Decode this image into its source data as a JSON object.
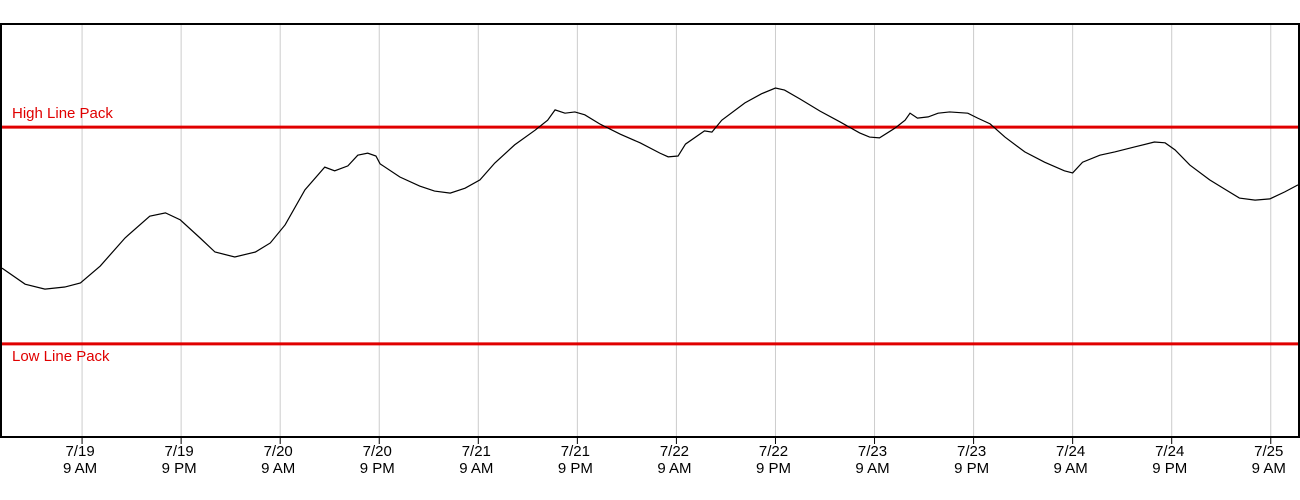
{
  "chart_data": {
    "type": "line",
    "x": [
      -0.7,
      2.1,
      4.5,
      6.9,
      8.8,
      11.2,
      14.2,
      17.2,
      19.1,
      20.9,
      23.3,
      25.1,
      27.5,
      30.0,
      31.8,
      33.6,
      36.0,
      38.4,
      39.6,
      41.2,
      42.4,
      43.6,
      44.6,
      45.1,
      47.5,
      49.9,
      51.7,
      53.6,
      55.4,
      57.2,
      59.0,
      61.4,
      63.9,
      65.4,
      66.3,
      67.5,
      68.7,
      69.9,
      71.7,
      74.2,
      76.6,
      79.0,
      80.0,
      81.2,
      82.1,
      84.4,
      85.3,
      86.5,
      89.3,
      91.3,
      93.0,
      94.1,
      96.0,
      98.4,
      100.8,
      103.2,
      104.4,
      105.6,
      107.5,
      108.7,
      109.3,
      110.2,
      111.5,
      112.7,
      114.1,
      116.3,
      117.5,
      119.0,
      120.8,
      123.2,
      125.6,
      128.0,
      129.0,
      130.2,
      132.3,
      134.1,
      136.5,
      138.9,
      140.2,
      141.4,
      143.2,
      145.6,
      147.4,
      149.2,
      151.1,
      152.9,
      154.7,
      156.3
    ],
    "series": [
      {
        "color": "#000000",
        "values": [
          41.0,
          37.1,
          35.9,
          36.4,
          37.4,
          41.5,
          48.3,
          53.6,
          54.4,
          52.7,
          48.3,
          44.9,
          43.7,
          44.9,
          47.1,
          51.5,
          60.0,
          65.5,
          64.6,
          65.8,
          68.4,
          68.9,
          68.2,
          66.3,
          63.1,
          60.9,
          59.7,
          59.2,
          60.4,
          62.4,
          66.5,
          70.9,
          74.5,
          76.9,
          79.4,
          78.6,
          78.9,
          78.2,
          76.0,
          73.5,
          71.4,
          68.9,
          68.0,
          68.2,
          71.1,
          74.3,
          74.0,
          76.9,
          81.1,
          83.3,
          84.7,
          84.2,
          82.0,
          79.1,
          76.5,
          73.8,
          72.8,
          72.6,
          75.0,
          76.9,
          78.6,
          77.4,
          77.7,
          78.6,
          78.9,
          78.6,
          77.4,
          76.0,
          72.8,
          69.2,
          66.7,
          64.6,
          64.1,
          66.7,
          68.4,
          69.2,
          70.4,
          71.6,
          71.4,
          69.7,
          66.0,
          62.4,
          60.2,
          58.0,
          57.5,
          57.8,
          59.5,
          61.2
        ]
      }
    ],
    "xlim": [
      -0.7,
      156.3
    ],
    "ylim": [
      0,
      100
    ],
    "xticks": [
      {
        "value": 9,
        "label": [
          "7/19",
          "9 AM"
        ]
      },
      {
        "value": 21,
        "label": [
          "7/19",
          "9 PM"
        ]
      },
      {
        "value": 33,
        "label": [
          "7/20",
          "9 AM"
        ]
      },
      {
        "value": 45,
        "label": [
          "7/20",
          "9 PM"
        ]
      },
      {
        "value": 57,
        "label": [
          "7/21",
          "9 AM"
        ]
      },
      {
        "value": 69,
        "label": [
          "7/21",
          "9 PM"
        ]
      },
      {
        "value": 81,
        "label": [
          "7/22",
          "9 AM"
        ]
      },
      {
        "value": 93,
        "label": [
          "7/22",
          "9 PM"
        ]
      },
      {
        "value": 105,
        "label": [
          "7/23",
          "9 AM"
        ]
      },
      {
        "value": 117,
        "label": [
          "7/23",
          "9 PM"
        ]
      },
      {
        "value": 129,
        "label": [
          "7/24",
          "9 AM"
        ]
      },
      {
        "value": 141,
        "label": [
          "7/24",
          "9 PM"
        ]
      },
      {
        "value": 153,
        "label": [
          "7/25",
          "9 AM"
        ]
      }
    ],
    "grid": true,
    "reference_lines": [
      {
        "label": "High Line Pack",
        "value": 75.2,
        "color": "#e00000"
      },
      {
        "label": "Low Line Pack",
        "value": 22.6,
        "color": "#e00000"
      }
    ]
  }
}
